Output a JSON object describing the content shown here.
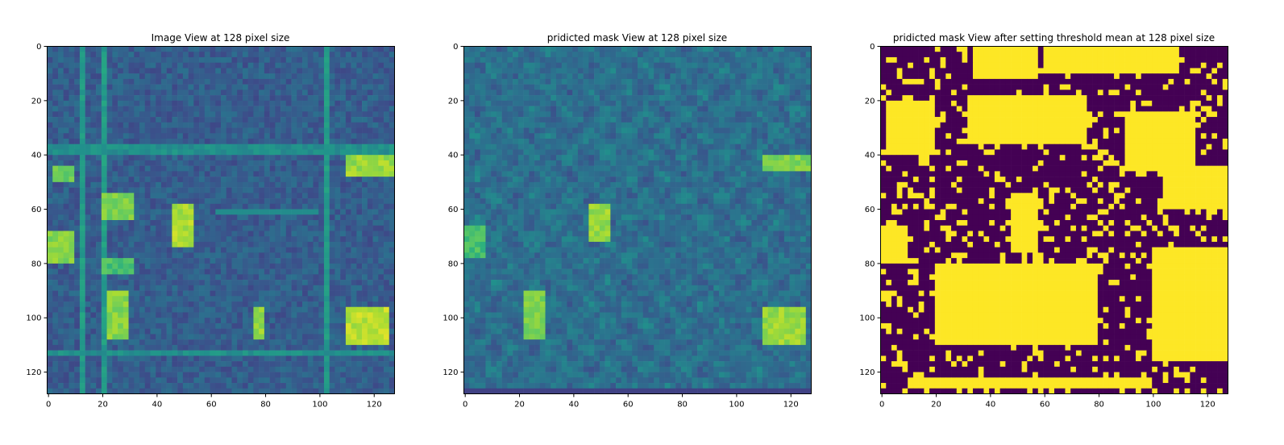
{
  "figure": {
    "panels": [
      {
        "title": "Image View at 128 pixel size"
      },
      {
        "title": "pridicted mask View at 128 pixel size"
      },
      {
        "title": "pridicted mask View after setting threshold mean at 128 pixel size"
      }
    ]
  },
  "colors": {
    "viridis_low": "#440154",
    "viridis_mid": "#21918c",
    "viridis_high": "#fde725",
    "axes_frame": "#000000",
    "background": "#ffffff"
  },
  "chart_data": [
    {
      "type": "heatmap",
      "title": "Image View at 128 pixel size",
      "xlabel": "",
      "ylabel": "",
      "xlim": [
        0,
        128
      ],
      "ylim": [
        128,
        0
      ],
      "x_ticks": [
        0,
        20,
        40,
        60,
        80,
        100,
        120
      ],
      "y_ticks": [
        0,
        20,
        40,
        60,
        80,
        100,
        120
      ],
      "colormap": "viridis",
      "grid": false,
      "bright_regions": [
        {
          "x": [
            1,
            9
          ],
          "y": [
            68,
            79
          ],
          "value": 0.82
        },
        {
          "x": [
            2,
            9
          ],
          "y": [
            45,
            49
          ],
          "value": 0.78
        },
        {
          "x": [
            20,
            31
          ],
          "y": [
            55,
            64
          ],
          "value": 0.8
        },
        {
          "x": [
            21,
            31
          ],
          "y": [
            79,
            84
          ],
          "value": 0.7
        },
        {
          "x": [
            22,
            29
          ],
          "y": [
            90,
            108
          ],
          "value": 0.82
        },
        {
          "x": [
            46,
            54
          ],
          "y": [
            58,
            73
          ],
          "value": 0.88
        },
        {
          "x": [
            110,
            127
          ],
          "y": [
            40,
            47
          ],
          "value": 0.85
        },
        {
          "x": [
            111,
            126
          ],
          "y": [
            96,
            109
          ],
          "value": 0.9
        },
        {
          "x": [
            77,
            80
          ],
          "y": [
            96,
            107
          ],
          "value": 0.85
        }
      ]
    },
    {
      "type": "heatmap",
      "title": "pridicted mask View at 128 pixel size",
      "xlabel": "",
      "ylabel": "",
      "xlim": [
        0,
        128
      ],
      "ylim": [
        128,
        0
      ],
      "x_ticks": [
        0,
        20,
        40,
        60,
        80,
        100,
        120
      ],
      "y_ticks": [
        0,
        20,
        40,
        60,
        80,
        100,
        120
      ],
      "colormap": "viridis",
      "grid": false,
      "bright_regions": [
        {
          "x": [
            46,
            54
          ],
          "y": [
            59,
            72
          ],
          "value": 0.85
        },
        {
          "x": [
            22,
            29
          ],
          "y": [
            91,
            108
          ],
          "value": 0.8
        },
        {
          "x": [
            111,
            126
          ],
          "y": [
            96,
            109
          ],
          "value": 0.85
        },
        {
          "x": [
            110,
            127
          ],
          "y": [
            41,
            46
          ],
          "value": 0.8
        },
        {
          "x": [
            1,
            8
          ],
          "y": [
            66,
            77
          ],
          "value": 0.7
        }
      ]
    },
    {
      "type": "heatmap",
      "title": "pridicted mask View after setting threshold mean at 128 pixel size",
      "xlabel": "",
      "ylabel": "",
      "xlim": [
        0,
        128
      ],
      "ylim": [
        128,
        0
      ],
      "x_ticks": [
        0,
        20,
        40,
        60,
        80,
        100,
        120
      ],
      "y_ticks": [
        0,
        20,
        40,
        60,
        80,
        100,
        120
      ],
      "colormap": "binary (viridis endpoints)",
      "threshold": "mean",
      "grid": false,
      "bright_regions": [
        {
          "x": [
            2,
            20
          ],
          "y": [
            20,
            40
          ],
          "value": 1
        },
        {
          "x": [
            1,
            10
          ],
          "y": [
            66,
            80
          ],
          "value": 1
        },
        {
          "x": [
            33,
            75
          ],
          "y": [
            18,
            35
          ],
          "value": 1
        },
        {
          "x": [
            35,
            58
          ],
          "y": [
            0,
            12
          ],
          "value": 1
        },
        {
          "x": [
            48,
            58
          ],
          "y": [
            55,
            75
          ],
          "value": 1
        },
        {
          "x": [
            20,
            80
          ],
          "y": [
            80,
            110
          ],
          "value": 1
        },
        {
          "x": [
            90,
            115
          ],
          "y": [
            25,
            45
          ],
          "value": 1
        },
        {
          "x": [
            105,
            127
          ],
          "y": [
            45,
            60
          ],
          "value": 1
        },
        {
          "x": [
            100,
            127
          ],
          "y": [
            75,
            115
          ],
          "value": 1
        },
        {
          "x": [
            60,
            110
          ],
          "y": [
            0,
            10
          ],
          "value": 1
        },
        {
          "x": [
            10,
            100
          ],
          "y": [
            123,
            126
          ],
          "value": 1
        }
      ]
    }
  ]
}
